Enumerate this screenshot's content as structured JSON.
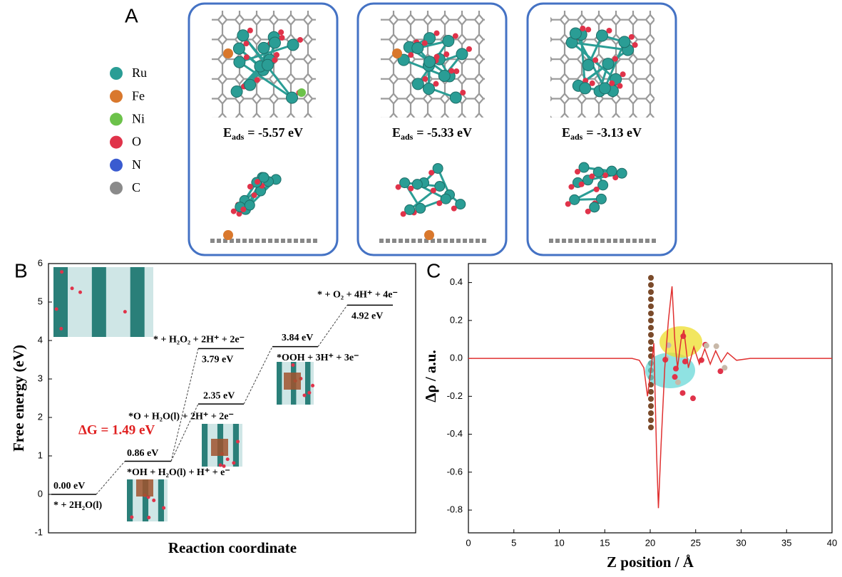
{
  "panel_labels": [
    "A",
    "B",
    "C"
  ],
  "panel_a": {
    "legend": [
      {
        "name": "Ru",
        "color": "#2a9d95"
      },
      {
        "name": "Fe",
        "color": "#d9782d"
      },
      {
        "name": "Ni",
        "color": "#6cc24a"
      },
      {
        "name": "O",
        "color": "#e0334a"
      },
      {
        "name": "N",
        "color": "#3a5bd0"
      },
      {
        "name": "C",
        "color": "#8a8a8a"
      }
    ],
    "structures": [
      {
        "symbol": "E",
        "subscript": "ads",
        "text": "= -5.57 eV"
      },
      {
        "symbol": "E",
        "subscript": "ads",
        "text": "= -5.33 eV"
      },
      {
        "symbol": "E",
        "subscript": "ads",
        "text": "= -3.13 eV"
      }
    ]
  },
  "chart_data": [
    {
      "type": "energy-diagram",
      "ylabel": "Free energy (eV)",
      "xlabel": "Reaction coordinate",
      "ylim": [
        -1,
        6
      ],
      "yticks": [
        -1,
        0,
        1,
        2,
        3,
        4,
        5,
        6
      ],
      "levels": [
        {
          "value": 0.0,
          "value_label": "0.00 eV",
          "species": "* + 2H₂O(l)"
        },
        {
          "value": 0.86,
          "value_label": "0.86 eV",
          "species": "*OH + H₂O(l) + H⁺ + e⁻"
        },
        {
          "value": 3.79,
          "value_label": "3.79 eV",
          "species": "* + H₂O₂ + 2H⁺ + 2e⁻"
        },
        {
          "value": 2.35,
          "value_label": "2.35 eV",
          "species": "*O + H₂O(l) + 2H⁺ + 2e⁻"
        },
        {
          "value": 3.84,
          "value_label": "3.84 eV",
          "species": "*OOH + 3H⁺ + 3e⁻"
        },
        {
          "value": 4.92,
          "value_label": "4.92 eV",
          "species": "* + O₂ + 4H⁺ + 4e⁻"
        }
      ],
      "annotation": "ΔG = 1.49 eV",
      "annotation_color": "#e02020"
    },
    {
      "type": "line",
      "ylabel": "Δρ / a.u.",
      "xlabel": "Z position / Å",
      "color": "#e03030",
      "xlim": [
        0,
        40
      ],
      "xticks": [
        0,
        5,
        10,
        15,
        20,
        25,
        30,
        35,
        40
      ],
      "ylim": [
        -0.92,
        0.5
      ],
      "yticks": [
        -0.8,
        -0.6,
        -0.4,
        -0.2,
        {
          "value": 0,
          "label": "0.0"
        },
        0.2,
        0.4
      ],
      "x": [
        0,
        18,
        18.8,
        19.3,
        19.7,
        20.1,
        20.4,
        20.7,
        20.9,
        21.2,
        21.6,
        22.0,
        22.4,
        22.7,
        23.0,
        23.4,
        23.7,
        24.2,
        24.8,
        25.4,
        26.0,
        26.6,
        27.2,
        27.8,
        28.5,
        29.5,
        31,
        40
      ],
      "values": [
        0,
        0,
        -0.01,
        -0.05,
        -0.2,
        -0.05,
        0.08,
        -0.5,
        -0.79,
        -0.45,
        -0.05,
        0.2,
        0.38,
        0.1,
        -0.05,
        0.1,
        0.15,
        -0.05,
        0.06,
        -0.03,
        0.05,
        -0.03,
        0.04,
        -0.02,
        0.03,
        -0.01,
        0,
        0
      ]
    }
  ]
}
